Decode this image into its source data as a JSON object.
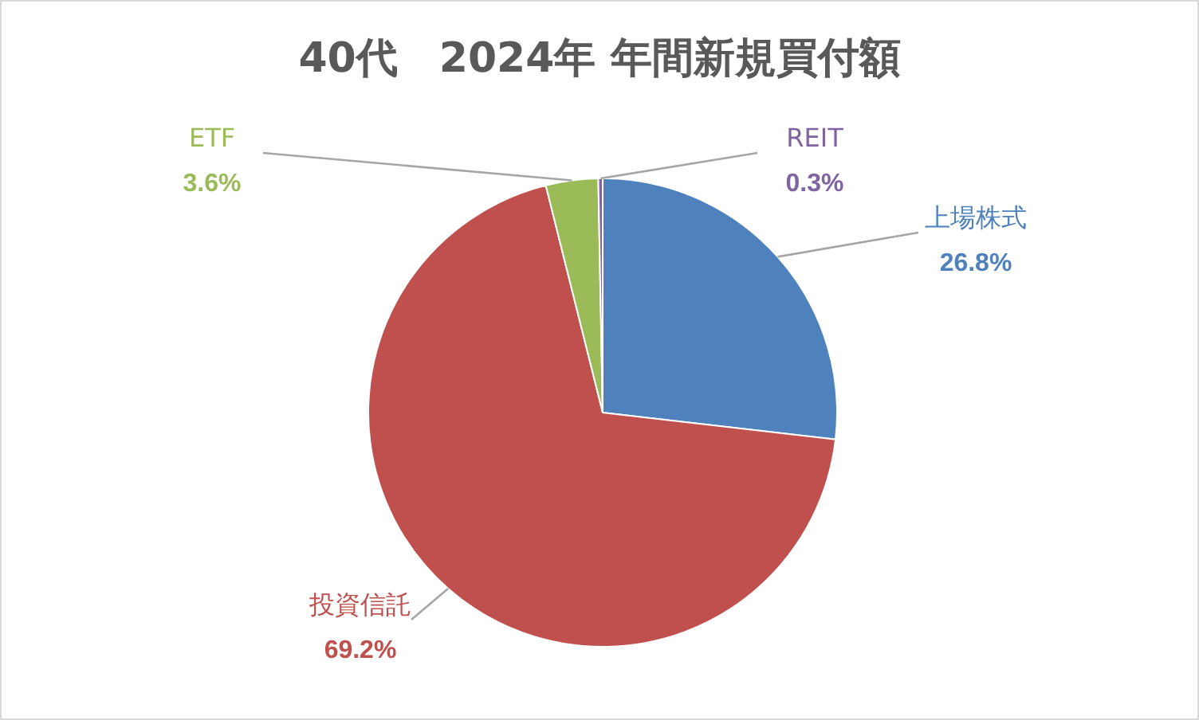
{
  "chart_data": {
    "type": "pie",
    "title": "40代　2024年 年間新規買付額",
    "categories": [
      "上場株式",
      "投資信託",
      "ETF",
      "REIT"
    ],
    "values": [
      26.8,
      69.2,
      3.6,
      0.3
    ],
    "colors": [
      "#4f81bd",
      "#c0504d",
      "#9bbb59",
      "#8064a2"
    ],
    "value_labels": [
      "26.8%",
      "69.2%",
      "3.6%",
      "0.3%"
    ]
  }
}
